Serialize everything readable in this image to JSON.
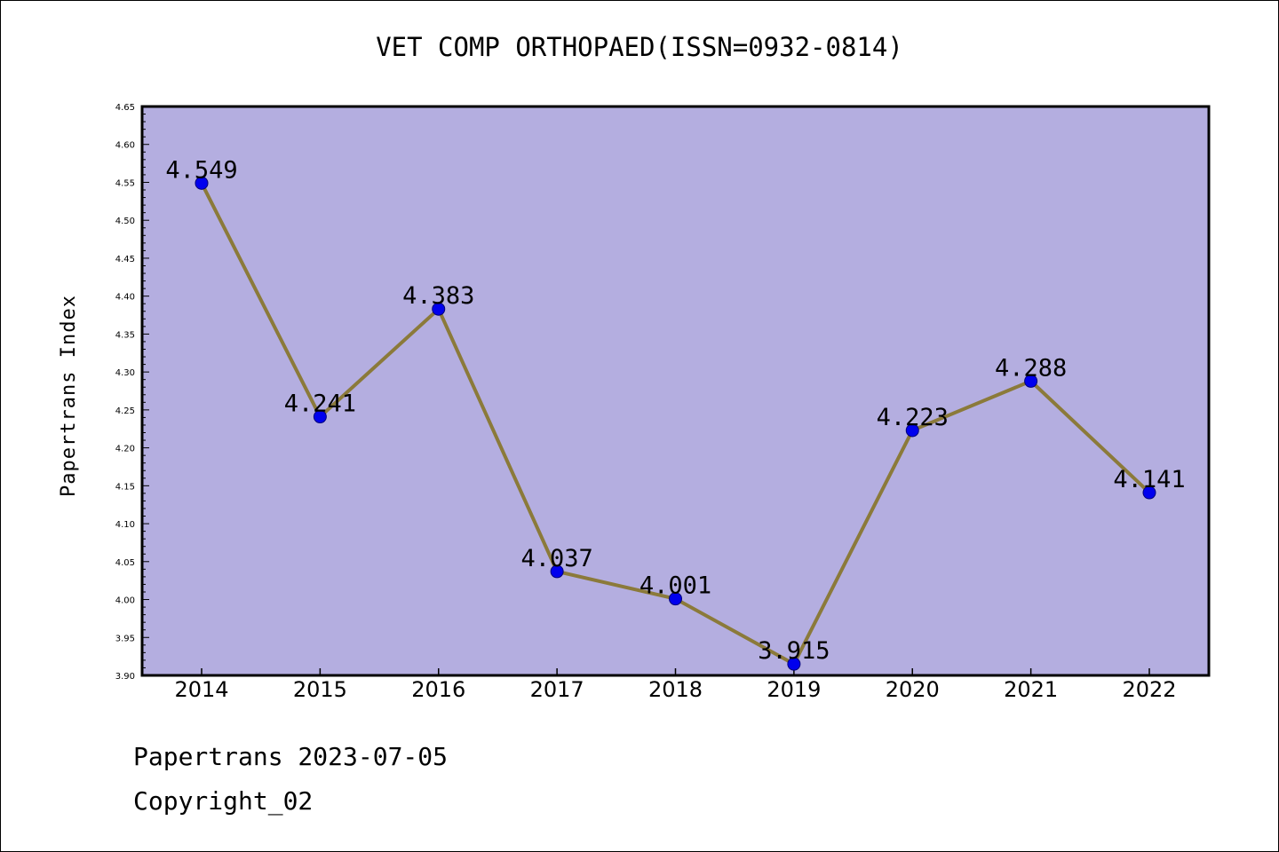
{
  "title": "VET COMP ORTHOPAED(ISSN=0932-0814)",
  "footer": {
    "date_line": "Papertrans 2023-07-05",
    "copyright": "Copyright_02"
  },
  "colors": {
    "plot_background": "#b4aee0",
    "line": "#8b7a3a",
    "marker_fill": "#0000ee",
    "marker_stroke": "#00007a",
    "axis": "#000000"
  },
  "chart_data": {
    "type": "line",
    "title": "VET COMP ORTHOPAED(ISSN=0932-0814)",
    "xlabel": "",
    "ylabel": "Papertrans Index",
    "categories": [
      "2014",
      "2015",
      "2016",
      "2017",
      "2018",
      "2019",
      "2020",
      "2021",
      "2022"
    ],
    "values": [
      4.549,
      4.241,
      4.383,
      4.037,
      4.001,
      3.915,
      4.223,
      4.288,
      4.141
    ],
    "data_labels": [
      "4.549",
      "4.241",
      "4.383",
      "4.037",
      "4.001",
      "3.915",
      "4.223",
      "4.288",
      "4.141"
    ],
    "ylim": [
      3.9,
      4.65
    ],
    "yticks": [
      "3.90",
      "3.95",
      "4.00",
      "4.05",
      "4.10",
      "4.15",
      "4.20",
      "4.25",
      "4.30",
      "4.35",
      "4.40",
      "4.45",
      "4.50",
      "4.55",
      "4.60",
      "4.65"
    ],
    "grid": false,
    "legend": "none"
  }
}
